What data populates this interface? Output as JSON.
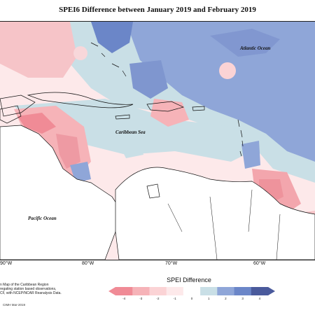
{
  "title": "SPEI6 Difference between January 2019 and February 2019",
  "labels": {
    "atlantic": "Atlantic Ocean",
    "caribbean": "Caribbean Sea",
    "pacific": "Pacific Ocean"
  },
  "longitude_ticks": [
    "80°W",
    "70°W",
    "60°W",
    "90°W"
  ],
  "legend": {
    "title": "SPEI Difference",
    "ticks": [
      "-4",
      "-3",
      "-2",
      "-1",
      "0",
      "1",
      "2",
      "3",
      "4"
    ],
    "colors": [
      "#f08b96",
      "#f6b3b8",
      "#fbd3d5",
      "#fde9ea",
      "#ffffff",
      "#c9dfe6",
      "#8fa6d8",
      "#6b86c8",
      "#4a5a9c"
    ]
  },
  "footnote": {
    "lines": [
      "n Map of the Caribbean Region",
      "regating station based observations,",
      "CF, with NCEP/NCAR Reanalysis Data."
    ],
    "credit": "CIMH Mar-2019"
  }
}
